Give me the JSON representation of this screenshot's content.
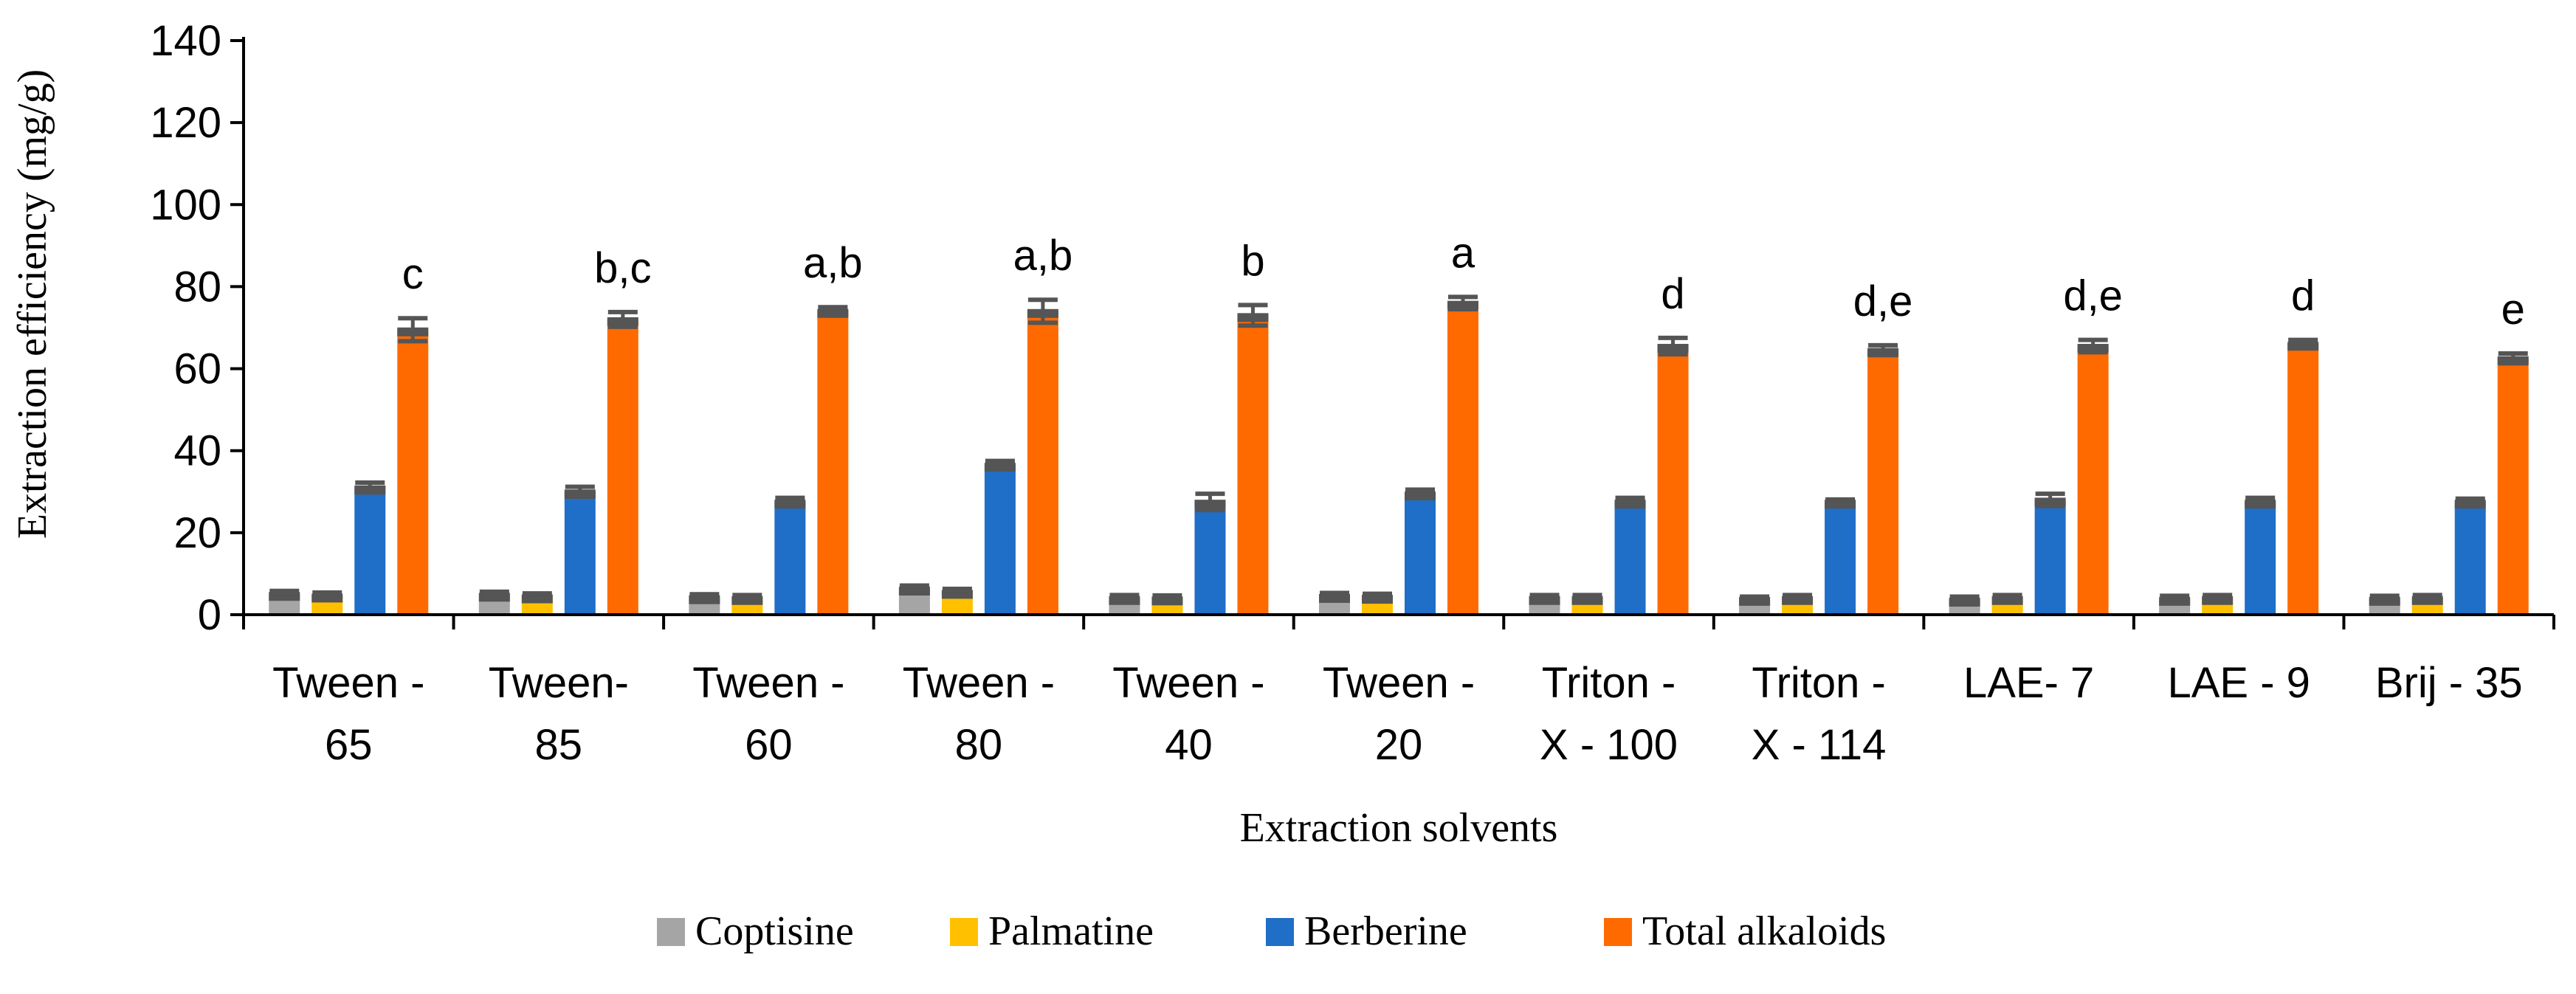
{
  "chart_data": {
    "type": "bar",
    "title": "",
    "xlabel": "Extraction solvents",
    "ylabel": "Extraction efficiency (mg/g)",
    "ylim": [
      0,
      140
    ],
    "yticks": [
      "0",
      "20",
      "40",
      "60",
      "80",
      "100",
      "120",
      "140"
    ],
    "grid": false,
    "legend_position": "bottom",
    "categories": [
      [
        "Tween -",
        "65"
      ],
      [
        "Tween-",
        "85"
      ],
      [
        "Tween -",
        "60"
      ],
      [
        "Tween -",
        "80"
      ],
      [
        "Tween -",
        "40"
      ],
      [
        "Tween -",
        "20"
      ],
      [
        "Triton -",
        "X - 100"
      ],
      [
        "Triton -",
        "X - 114"
      ],
      [
        "LAE- 7"
      ],
      [
        "LAE - 9"
      ],
      [
        "Brij - 35"
      ]
    ],
    "series": [
      {
        "name": "Coptisine",
        "color": "#A5A5A5",
        "values": [
          5.0,
          4.8,
          4.2,
          6.3,
          4.0,
          4.5,
          4.0,
          3.8,
          3.6,
          3.8,
          3.8
        ],
        "errors": [
          0.8,
          0.8,
          0.8,
          0.8,
          0.8,
          0.8,
          0.8,
          0.6,
          0.8,
          0.8,
          0.8
        ]
      },
      {
        "name": "Palmatine",
        "color": "#FFC000",
        "values": [
          4.6,
          4.4,
          4.0,
          5.5,
          3.9,
          4.3,
          4.0,
          4.0,
          4.0,
          4.0,
          4.0
        ],
        "errors": [
          0.8,
          0.8,
          0.8,
          0.8,
          0.8,
          0.8,
          0.8,
          0.8,
          0.8,
          0.8,
          0.8
        ]
      },
      {
        "name": "Berberine",
        "color": "#1F6EC8",
        "values": [
          31.0,
          30.0,
          27.5,
          36.5,
          27.5,
          29.5,
          27.5,
          27.5,
          28.0,
          27.5,
          27.5
        ],
        "errors": [
          1.2,
          1.2,
          1.0,
          1.0,
          2.0,
          1.0,
          1.0,
          0.6,
          1.5,
          1.0,
          0.8
        ]
      },
      {
        "name": "Total alkaloids",
        "color": "#FF6A00",
        "values": [
          69.5,
          72.0,
          74.0,
          74.0,
          73.0,
          76.0,
          65.5,
          64.5,
          65.5,
          66.0,
          62.5
        ],
        "errors": [
          2.8,
          1.8,
          1.0,
          2.8,
          2.5,
          1.5,
          2.0,
          1.2,
          1.5,
          1.0,
          1.2
        ]
      }
    ],
    "significance_letters": [
      "c",
      "b,c",
      "a,b",
      "a,b",
      "b",
      "a",
      "d",
      "d,e",
      "d,e",
      "d",
      "e"
    ]
  }
}
